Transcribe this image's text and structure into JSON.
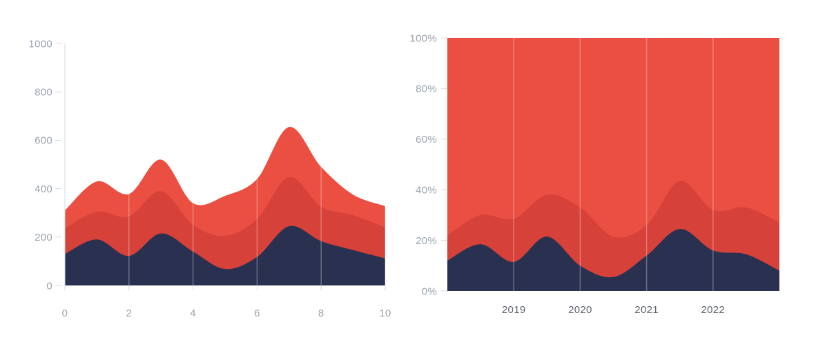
{
  "page": {
    "background_color": "#ffffff",
    "description": "Two stacked area charts side by side"
  },
  "colors": {
    "series_dark_navy": "#2A3150",
    "series_middle_red": "#D6413A",
    "series_bright_red": "#EA4F41",
    "axis_line": "#D5DAE0",
    "tick_label_light": "#9AA3AE",
    "tick_label_dark": "#5D646E",
    "gridline_overlay": "rgba(255,255,255,0.3)"
  },
  "chart_data": [
    {
      "id": "stacked-area-absolute",
      "type": "area",
      "stacked": true,
      "title": "",
      "xlabel": "",
      "ylabel": "",
      "x": [
        0,
        1,
        2,
        3,
        4,
        5,
        6,
        7,
        8,
        9,
        10
      ],
      "xlim": [
        0,
        10
      ],
      "ylim": [
        0,
        1000
      ],
      "x_tick_labels": [
        "0",
        "2",
        "4",
        "6",
        "8",
        "10"
      ],
      "x_tick_values": [
        0,
        2,
        4,
        6,
        8,
        10
      ],
      "gridline_values": [
        2,
        4,
        6,
        8,
        10
      ],
      "y_tick_labels": [
        "1000",
        "800",
        "600",
        "400",
        "200",
        "0"
      ],
      "y_tick_values": [
        1000,
        800,
        600,
        400,
        200,
        0
      ],
      "grid": "vertical-gridlines-drawn-over-fills",
      "legend": false,
      "series": [
        {
          "name": "bottom-dark-navy",
          "color": "#2A3150",
          "values": [
            130,
            190,
            122,
            215,
            140,
            68,
            118,
            245,
            183,
            146,
            112
          ]
        },
        {
          "name": "middle-red",
          "color": "#D6413A",
          "values": [
            106,
            115,
            163,
            175,
            110,
            137,
            157,
            203,
            142,
            144,
            128
          ]
        },
        {
          "name": "top-bright-red",
          "color": "#EA4F41",
          "values": [
            74,
            125,
            93,
            130,
            90,
            165,
            165,
            207,
            165,
            85,
            88
          ]
        }
      ]
    },
    {
      "id": "stacked-area-percent",
      "type": "area",
      "stacked": true,
      "normalized_to_100_percent": true,
      "title": "",
      "xlabel": "",
      "ylabel": "",
      "x": [
        0,
        1,
        2,
        3,
        4,
        5,
        6,
        7,
        8,
        9,
        10
      ],
      "xlim": [
        0,
        10
      ],
      "ylim": [
        0,
        100
      ],
      "x_tick_labels": [
        "2019",
        "2020",
        "2021",
        "2022"
      ],
      "x_tick_values": [
        2,
        4,
        6,
        8
      ],
      "gridline_values": [
        2,
        4,
        6,
        8
      ],
      "y_tick_labels": [
        "100%",
        "80%",
        "60%",
        "40%",
        "20%",
        "0%"
      ],
      "y_tick_values": [
        100,
        80,
        60,
        40,
        20,
        0
      ],
      "grid": "vertical-gridlines-drawn-over-fills",
      "legend": false,
      "series": [
        {
          "name": "bottom-dark-navy",
          "color": "#2A3150",
          "values": [
            12,
            18.5,
            11.5,
            21.5,
            10,
            5.5,
            14,
            24.5,
            16,
            14.5,
            8
          ]
        },
        {
          "name": "middle-red",
          "color": "#D6413A",
          "values": [
            10,
            11.5,
            17,
            16.5,
            23,
            16,
            12,
            19,
            16,
            18.5,
            19
          ]
        },
        {
          "name": "top-bright-red",
          "color": "#EA4F41",
          "values": [
            78,
            70,
            71.5,
            62,
            67,
            78.5,
            74,
            56.5,
            68,
            67,
            73
          ]
        }
      ]
    }
  ]
}
